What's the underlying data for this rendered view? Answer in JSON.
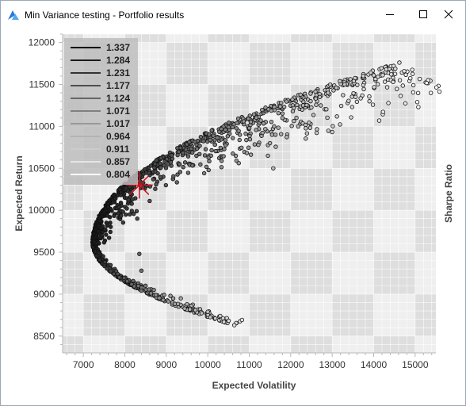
{
  "window": {
    "title": "Min Variance testing - Portfolio results",
    "controls": [
      "minimize-icon",
      "maximize-icon",
      "close-icon"
    ]
  },
  "chart_data": {
    "type": "scatter",
    "xlabel": "Expected Volatility",
    "ylabel": "Expected Return",
    "y2label": "Sharpe Ratio",
    "xlim": [
      6500,
      15500
    ],
    "ylim": [
      8300,
      12100
    ],
    "xticks": [
      7000,
      8000,
      9000,
      10000,
      11000,
      12000,
      13000,
      14000,
      15000
    ],
    "yticks": [
      8500,
      9000,
      9500,
      10000,
      10500,
      11000,
      11500,
      12000
    ],
    "grid": true,
    "legend": {
      "title": "",
      "placement": "top-left",
      "entries": [
        "1.337",
        "1.284",
        "1.231",
        "1.177",
        "1.124",
        "1.071",
        "1.017",
        "0.964",
        "0.911",
        "0.857",
        "0.804"
      ]
    },
    "colors": {
      "high_sharpe": "#000000",
      "low_sharpe": "#ffffff",
      "optimal_marker": "#d0101a",
      "grid_band_dark": "#dedede",
      "grid_band_light": "#efefef"
    },
    "optimal_portfolio": {
      "x": 8350,
      "y": 10300,
      "marker": "asterisk-icon"
    },
    "frontier": {
      "x_min": 7220,
      "y_at_x_min": 9620,
      "upper_branch_end": {
        "x": 14620,
        "y": 11760
      },
      "lower_branch_end": {
        "x": 10640,
        "y": 8630
      }
    },
    "series": [
      {
        "values": [
          [
            14620,
            11760
          ],
          [
            13930,
            11640
          ],
          [
            13750,
            11600
          ],
          [
            13520,
            11540
          ],
          [
            13300,
            11500
          ],
          [
            13100,
            11460
          ],
          [
            12900,
            11400
          ],
          [
            12700,
            11350
          ],
          [
            12480,
            11300
          ],
          [
            12300,
            11250
          ],
          [
            12050,
            11180
          ],
          [
            11800,
            11100
          ],
          [
            11600,
            11000
          ],
          [
            11550,
            10900
          ],
          [
            11500,
            10800
          ],
          [
            11450,
            10650
          ],
          [
            11580,
            10500
          ],
          [
            10640,
            8630
          ],
          [
            10300,
            8740
          ],
          [
            10000,
            8790
          ],
          [
            9700,
            8810
          ],
          [
            9500,
            8880
          ],
          [
            9350,
            8950
          ],
          [
            9100,
            8980
          ],
          [
            8750,
            8990
          ],
          [
            8700,
            9050
          ],
          [
            8500,
            9100
          ],
          [
            8400,
            9280
          ],
          [
            8350,
            9480
          ],
          [
            8300,
            9900
          ]
        ]
      }
    ]
  }
}
